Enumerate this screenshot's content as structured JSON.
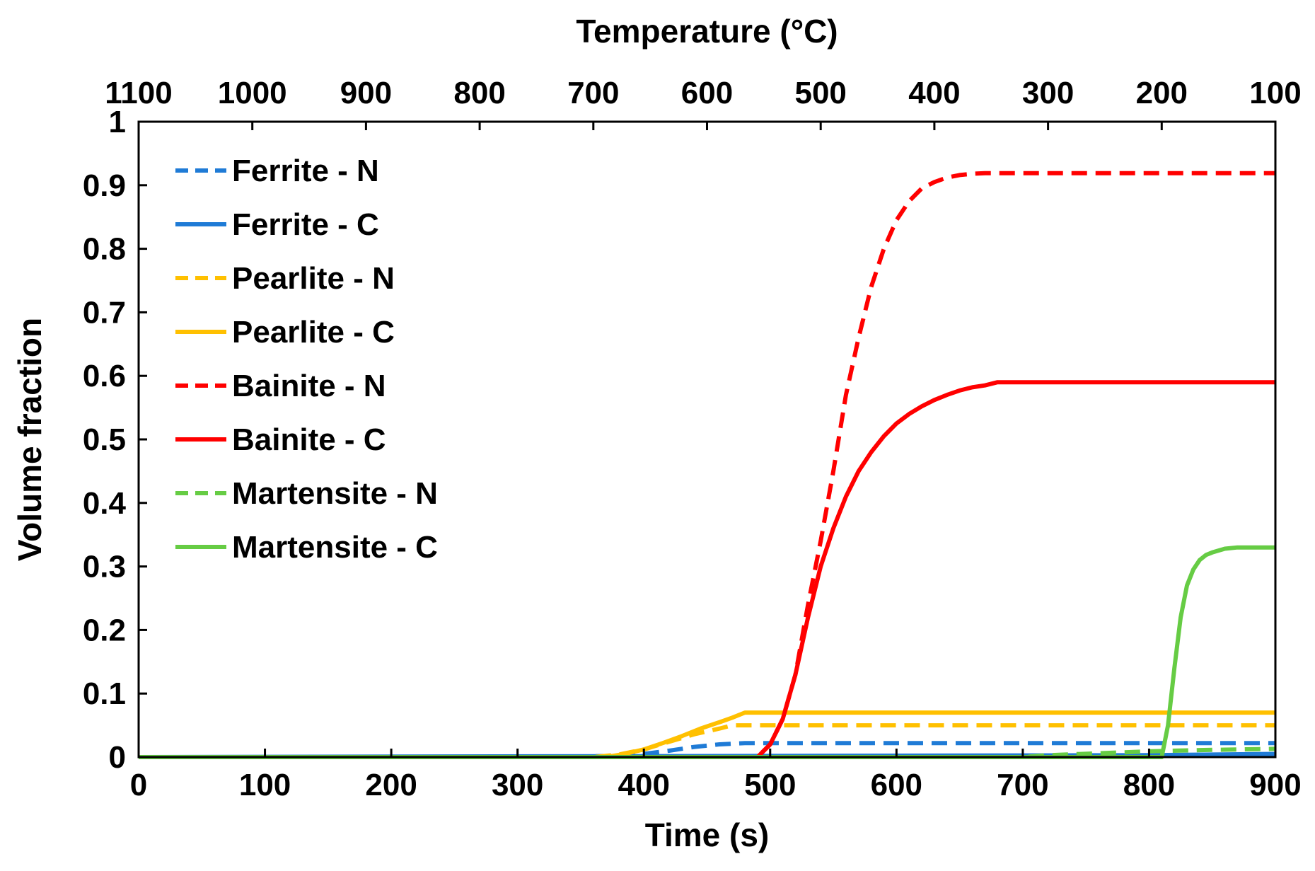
{
  "chart_data": {
    "type": "line",
    "title": "",
    "xlabel": "Time (s)",
    "ylabel": "Volume fraction",
    "x2label": "Temperature (°C)",
    "xlim": [
      0,
      900
    ],
    "ylim": [
      0,
      1
    ],
    "grid": false,
    "legend_position": "top-left",
    "x_ticks": [
      "0",
      "100",
      "200",
      "300",
      "400",
      "500",
      "600",
      "700",
      "800",
      "900"
    ],
    "x_tick_values": [
      0,
      100,
      200,
      300,
      400,
      500,
      600,
      700,
      800,
      900
    ],
    "y_ticks": [
      "0",
      "0.1",
      "0.2",
      "0.3",
      "0.4",
      "0.5",
      "0.6",
      "0.7",
      "0.8",
      "0.9",
      "1"
    ],
    "y_tick_values": [
      0,
      0.1,
      0.2,
      0.3,
      0.4,
      0.5,
      0.6,
      0.7,
      0.8,
      0.9,
      1
    ],
    "x2_ticks": [
      "1100",
      "1000",
      "900",
      "800",
      "700",
      "600",
      "500",
      "400",
      "300",
      "200",
      "100"
    ],
    "x2_tick_positions_time": [
      0,
      90,
      180,
      270,
      360,
      450,
      540,
      630,
      720,
      810,
      900
    ],
    "series": [
      {
        "name": "Ferrite - N",
        "color": "#1f7bd6",
        "dash": true,
        "x": [
          0,
          320,
          380,
          400,
          420,
          440,
          460,
          480,
          900
        ],
        "y": [
          0,
          0,
          0.002,
          0.005,
          0.01,
          0.016,
          0.02,
          0.022,
          0.022
        ]
      },
      {
        "name": "Ferrite - C",
        "color": "#1f7bd6",
        "dash": false,
        "x": [
          0,
          800,
          900
        ],
        "y": [
          0,
          0.003,
          0.005
        ]
      },
      {
        "name": "Pearlite - N",
        "color": "#ffc000",
        "dash": true,
        "x": [
          0,
          360,
          380,
          400,
          420,
          440,
          460,
          470,
          900
        ],
        "y": [
          0,
          0,
          0.004,
          0.012,
          0.024,
          0.036,
          0.045,
          0.05,
          0.05
        ]
      },
      {
        "name": "Pearlite - C",
        "color": "#ffc000",
        "dash": false,
        "x": [
          0,
          370,
          385,
          400,
          415,
          430,
          445,
          460,
          470,
          480,
          900
        ],
        "y": [
          0,
          0,
          0.005,
          0.012,
          0.022,
          0.033,
          0.045,
          0.055,
          0.062,
          0.07,
          0.07
        ]
      },
      {
        "name": "Bainite - N",
        "color": "#ff0000",
        "dash": true,
        "x": [
          0,
          490,
          500,
          510,
          520,
          530,
          540,
          550,
          560,
          570,
          580,
          590,
          600,
          610,
          620,
          630,
          640,
          650,
          660,
          670,
          680,
          700,
          900
        ],
        "y": [
          0,
          0,
          0.02,
          0.06,
          0.13,
          0.24,
          0.34,
          0.45,
          0.57,
          0.66,
          0.74,
          0.8,
          0.845,
          0.875,
          0.895,
          0.905,
          0.912,
          0.916,
          0.918,
          0.919,
          0.919,
          0.919,
          0.919
        ]
      },
      {
        "name": "Bainite - C",
        "color": "#ff0000",
        "dash": false,
        "x": [
          0,
          490,
          500,
          510,
          520,
          530,
          540,
          550,
          560,
          570,
          580,
          590,
          600,
          610,
          620,
          630,
          640,
          650,
          660,
          670,
          680,
          900
        ],
        "y": [
          0,
          0,
          0.02,
          0.06,
          0.13,
          0.22,
          0.3,
          0.36,
          0.41,
          0.45,
          0.48,
          0.505,
          0.525,
          0.54,
          0.552,
          0.562,
          0.57,
          0.577,
          0.582,
          0.585,
          0.59,
          0.59
        ]
      },
      {
        "name": "Martensite - N",
        "color": "#66cc44",
        "dash": true,
        "x": [
          0,
          700,
          720,
          760,
          800,
          840,
          900
        ],
        "y": [
          0,
          0,
          0.003,
          0.006,
          0.009,
          0.011,
          0.013
        ]
      },
      {
        "name": "Martensite - C",
        "color": "#66cc44",
        "dash": false,
        "x": [
          0,
          810,
          815,
          820,
          825,
          830,
          835,
          840,
          845,
          850,
          855,
          860,
          870,
          900
        ],
        "y": [
          0,
          0,
          0.05,
          0.14,
          0.22,
          0.27,
          0.295,
          0.31,
          0.318,
          0.322,
          0.325,
          0.328,
          0.33,
          0.33
        ]
      }
    ]
  }
}
